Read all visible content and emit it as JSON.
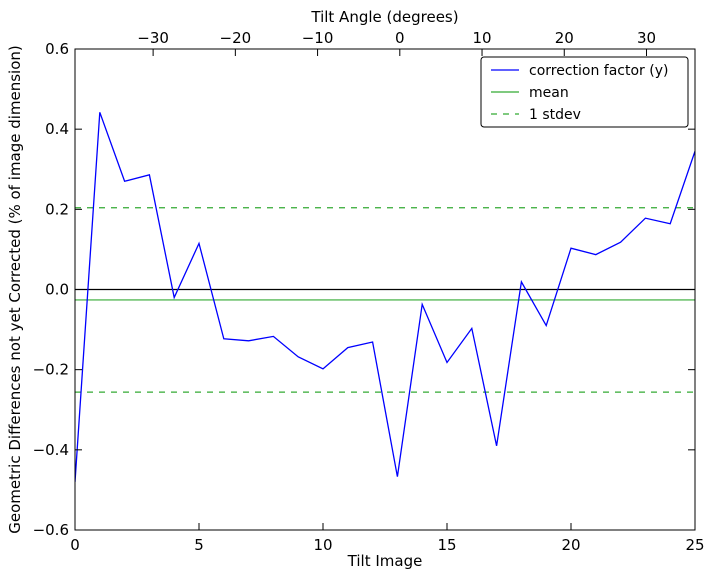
{
  "chart_data": {
    "type": "line",
    "xlabel": "Tilt Image",
    "ylabel": "Geometric Differences not yet Corrected (% of image dimension)",
    "top_xlabel": "Tilt Angle (degrees)",
    "xlim": [
      0,
      25
    ],
    "ylim": [
      -0.6,
      0.6
    ],
    "top_xlim": [
      -39.5,
      35.9
    ],
    "x_ticks": [
      0,
      5,
      10,
      15,
      20,
      25
    ],
    "x_tick_labels": [
      "0",
      "5",
      "10",
      "15",
      "20",
      "25"
    ],
    "y_ticks": [
      -0.6,
      -0.4,
      -0.2,
      0.0,
      0.2,
      0.4,
      0.6
    ],
    "y_tick_labels": [
      "−0.6",
      "−0.4",
      "−0.2",
      "0.0",
      "0.2",
      "0.4",
      "0.6"
    ],
    "top_ticks": [
      -30,
      -20,
      -10,
      0,
      10,
      20,
      30
    ],
    "top_tick_labels": [
      "−30",
      "−20",
      "−10",
      "0",
      "10",
      "20",
      "30"
    ],
    "grid": false,
    "legend_position": "top-right",
    "series": [
      {
        "name": "correction factor (y)",
        "color": "#0000ff",
        "style": "solid",
        "x": [
          0,
          1,
          2,
          3,
          4,
          5,
          6,
          7,
          8,
          9,
          10,
          11,
          12,
          13,
          14,
          15,
          16,
          17,
          18,
          19,
          20,
          21,
          22,
          23,
          24,
          25
        ],
        "values": [
          -0.48,
          0.442,
          0.27,
          0.286,
          -0.02,
          0.115,
          -0.123,
          -0.128,
          -0.117,
          -0.168,
          -0.198,
          -0.145,
          -0.131,
          -0.467,
          -0.037,
          -0.182,
          -0.097,
          -0.39,
          0.019,
          -0.09,
          0.103,
          0.087,
          0.118,
          0.178,
          0.164,
          0.345
        ]
      }
    ],
    "reference_lines": [
      {
        "name": "mean",
        "value": -0.026,
        "color": "#33aa33",
        "style": "solid"
      },
      {
        "name": "1 stdev",
        "value": 0.204,
        "color": "#33aa33",
        "style": "dashed"
      },
      {
        "value": -0.256,
        "color": "#33aa33",
        "style": "dashed"
      },
      {
        "value": 0.0,
        "color": "#000000",
        "style": "solid"
      }
    ],
    "legend": [
      "correction factor (y)",
      "mean",
      "1 stdev"
    ]
  }
}
